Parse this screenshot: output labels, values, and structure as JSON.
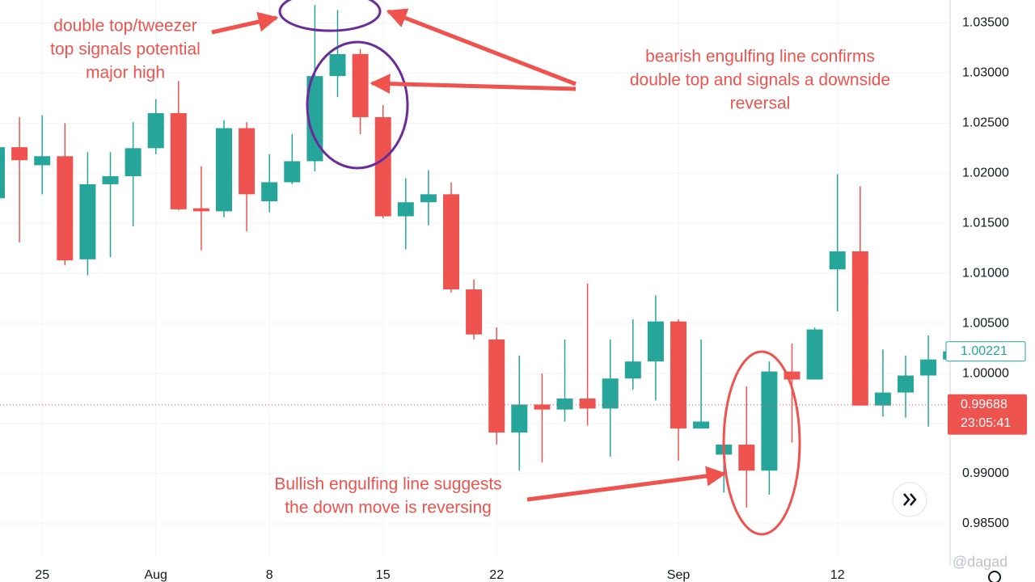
{
  "chart_data": {
    "type": "candlestick",
    "categories": [
      null,
      null,
      "25",
      null,
      null,
      null,
      null,
      "Aug",
      null,
      null,
      null,
      null,
      "8",
      null,
      null,
      null,
      null,
      "15",
      null,
      null,
      null,
      null,
      "22",
      null,
      null,
      null,
      null,
      null,
      null,
      null,
      "Sep",
      null,
      null,
      null,
      null,
      null,
      null,
      "12",
      null,
      null,
      null,
      null,
      null
    ],
    "open": [
      1.0175,
      1.0226,
      1.0208,
      1.0217,
      1.0114,
      1.0189,
      1.0197,
      1.0225,
      1.026,
      1.0165,
      1.0162,
      1.0245,
      1.0172,
      1.0191,
      1.0212,
      1.0297,
      1.0319,
      1.0256,
      1.0157,
      1.0171,
      1.0179,
      1.0084,
      1.0034,
      0.9941,
      0.9969,
      0.9964,
      0.9975,
      0.9965,
      0.9995,
      1.0012,
      1.0052,
      0.9945,
      0.9919,
      0.9929,
      0.9903,
      1.0002,
      0.9994,
      1.0104,
      1.0122,
      0.9968,
      0.9981,
      0.9998,
      1.0014
    ],
    "high": [
      1.0251,
      1.0256,
      1.0258,
      1.025,
      1.0221,
      1.0221,
      1.0251,
      1.0274,
      1.0292,
      1.0207,
      1.0253,
      1.0251,
      1.0219,
      1.0239,
      1.0368,
      1.0363,
      1.0324,
      1.0268,
      1.0195,
      1.0203,
      1.0191,
      1.0094,
      1.0046,
      1.0018,
      1.0,
      1.0034,
      1.009,
      1.0034,
      1.0054,
      1.0078,
      1.0054,
      1.0034,
      0.9933,
      0.9987,
      1.0012,
      1.003,
      1.0046,
      1.0199,
      1.0187,
      1.0024,
      1.0018,
      1.0038,
      1.0034
    ],
    "low": [
      1.0171,
      1.0131,
      1.0179,
      1.0108,
      1.0098,
      1.0116,
      1.0147,
      1.0219,
      1.0163,
      1.0123,
      1.0156,
      1.0142,
      1.0161,
      1.0189,
      1.0202,
      1.0276,
      1.0239,
      1.0155,
      1.0124,
      1.0148,
      1.0081,
      1.0034,
      0.9929,
      0.9903,
      0.9911,
      0.9952,
      0.9948,
      0.9917,
      0.9984,
      0.9973,
      0.9913,
      0.9945,
      0.9881,
      0.9866,
      0.9879,
      0.9931,
      0.9994,
      1.0062,
      0.9968,
      0.9957,
      0.9956,
      0.9947,
      1.0014
    ],
    "close": [
      1.0226,
      1.0213,
      1.0217,
      1.0113,
      1.0189,
      1.0197,
      1.0225,
      1.026,
      1.0164,
      1.0162,
      1.0245,
      1.0179,
      1.0191,
      1.0212,
      1.0297,
      1.0319,
      1.0256,
      1.0157,
      1.0171,
      1.0179,
      1.0084,
      1.0039,
      0.9941,
      0.9969,
      0.9964,
      0.9975,
      0.9965,
      0.9995,
      1.0012,
      1.0052,
      0.9945,
      0.9952,
      0.9929,
      0.9903,
      1.0002,
      0.9994,
      1.0044,
      1.0122,
      0.9968,
      0.9981,
      0.9998,
      1.0014,
      1.00221
    ],
    "up_color": "#26a69a",
    "down_color": "#ef5350",
    "ylim": [
      0.9816,
      1.0373
    ],
    "yticks": [
      {
        "value": 0.985,
        "label": "0.98500"
      },
      {
        "value": 0.99,
        "label": "0.99000"
      },
      {
        "value": 0.995,
        "label": ""
      },
      {
        "value": 1.0,
        "label": "1.00000"
      },
      {
        "value": 1.005,
        "label": "1.00500"
      },
      {
        "value": 1.01,
        "label": "1.01000"
      },
      {
        "value": 1.015,
        "label": "1.01500"
      },
      {
        "value": 1.02,
        "label": "1.02000"
      },
      {
        "value": 1.025,
        "label": "1.02500"
      },
      {
        "value": 1.03,
        "label": "1.03000"
      },
      {
        "value": 1.035,
        "label": "1.03500"
      }
    ],
    "grid": true,
    "last_price": {
      "value": 1.00221,
      "label": "1.00221"
    },
    "current_price": {
      "value": 0.99688,
      "label": "0.99688",
      "countdown": "23:05:41"
    },
    "annotations": [
      {
        "lines": [
          "double top/tweezer",
          "top signals potential",
          "major high"
        ]
      },
      {
        "lines": [
          "bearish engulfing line confirms",
          "double top and signals a downside",
          "reversal"
        ]
      },
      {
        "lines": [
          "Bullish engulfing line suggests",
          "the down move is reversing"
        ]
      }
    ],
    "watermark": "@dagad"
  }
}
